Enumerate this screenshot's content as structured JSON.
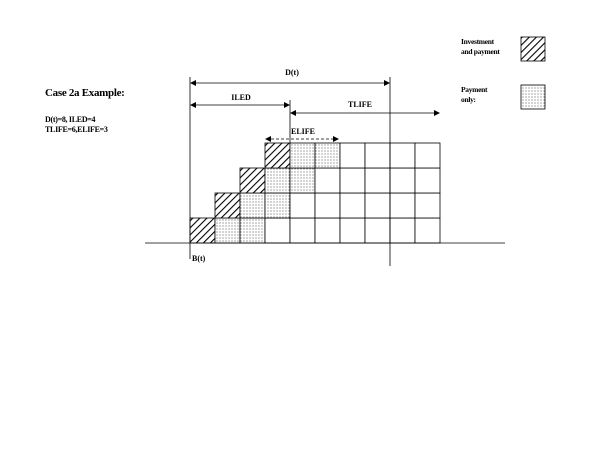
{
  "case_title": "Case 2a Example:",
  "params": {
    "line1": "D(t)=8, ILED=4",
    "line2": "TLIFE=6,ELIFE=3"
  },
  "arrows": {
    "dt": "D(t)",
    "iled": "ILED",
    "tlife": "TLIFE",
    "elife": "ELIFE"
  },
  "axis_label": "B(t)",
  "legend": {
    "investment_line1": "Investment",
    "investment_line2": "and payment",
    "payment_line1": "Payment",
    "payment_line2": "only:"
  },
  "grid": {
    "columns": 10,
    "rows": [
      {
        "start": 0,
        "hatched": 1,
        "dotted": 2
      },
      {
        "start": 1,
        "hatched": 1,
        "dotted": 2
      },
      {
        "start": 2,
        "hatched": 1,
        "dotted": 2
      },
      {
        "start": 3,
        "hatched": 1,
        "dotted": 2
      }
    ]
  }
}
